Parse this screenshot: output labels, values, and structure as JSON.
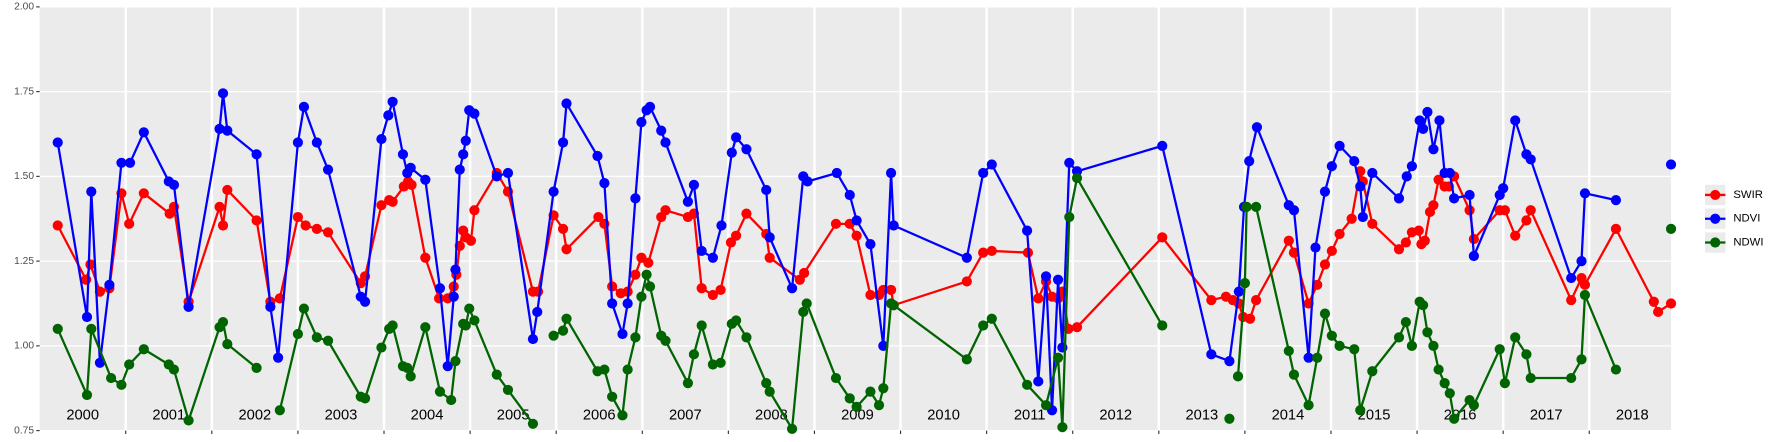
{
  "chart_data": {
    "type": "line",
    "xlim": [
      2000,
      2018.95
    ],
    "xticks": [
      2001,
      2002,
      2003,
      2004,
      2005,
      2006,
      2007,
      2008,
      2009,
      2010,
      2011,
      2012,
      2013,
      2014,
      2015,
      2016,
      2017,
      2018
    ],
    "year_labels": [
      {
        "value": 2000.5,
        "label": "2000"
      },
      {
        "value": 2001.5,
        "label": "2001"
      },
      {
        "value": 2002.5,
        "label": "2002"
      },
      {
        "value": 2003.5,
        "label": "2003"
      },
      {
        "value": 2004.5,
        "label": "2004"
      },
      {
        "value": 2005.5,
        "label": "2005"
      },
      {
        "value": 2006.5,
        "label": "2006"
      },
      {
        "value": 2007.5,
        "label": "2007"
      },
      {
        "value": 2008.5,
        "label": "2008"
      },
      {
        "value": 2009.5,
        "label": "2009"
      },
      {
        "value": 2010.5,
        "label": "2010"
      },
      {
        "value": 2011.5,
        "label": "2011"
      },
      {
        "value": 2012.5,
        "label": "2012"
      },
      {
        "value": 2013.5,
        "label": "2013"
      },
      {
        "value": 2014.5,
        "label": "2014"
      },
      {
        "value": 2015.5,
        "label": "2015"
      },
      {
        "value": 2016.5,
        "label": "2016"
      },
      {
        "value": 2017.5,
        "label": "2017"
      },
      {
        "value": 2018.5,
        "label": "2018"
      }
    ],
    "ylim": [
      0.75,
      2.0
    ],
    "yticks": [
      {
        "value": 0.75,
        "label": "0.75"
      },
      {
        "value": 1,
        "label": "1.00"
      },
      {
        "value": 1.25,
        "label": "1.25"
      },
      {
        "value": 1.5,
        "label": "1.50"
      },
      {
        "value": 1.75,
        "label": "1.75"
      },
      {
        "value": 2,
        "label": "2.00"
      }
    ],
    "grid": true,
    "legend": "right",
    "series": [
      {
        "name": "SWIR",
        "color": "#ff0000",
        "x": [
          2000.21,
          2000.54,
          2000.59,
          2000.7,
          2000.81,
          2000.95,
          2001.04,
          2001.21,
          2001.51,
          2001.56,
          2001.73,
          2002.09,
          2002.13,
          2002.18,
          2002.52,
          2002.68,
          2002.79,
          2003.0,
          2003.09,
          2003.22,
          2003.35,
          2003.73,
          2003.78,
          2003.97,
          2004.06,
          2004.1,
          2004.23,
          2004.28,
          2004.32,
          2004.48,
          2004.64,
          2004.74,
          2004.81,
          2004.84,
          2004.88,
          2004.92,
          2004.95,
          2005.01,
          2005.05,
          2005.31,
          2005.44,
          2005.73,
          2005.79,
          2005.97,
          2006.08,
          2006.12,
          2006.49,
          2006.56,
          2006.65,
          2006.75,
          2006.83,
          2006.92,
          2006.99,
          2007.07,
          2007.22,
          2007.27,
          2007.53,
          2007.6,
          2007.69,
          2007.82,
          2007.91,
          2008.03,
          2008.09,
          2008.21,
          2008.44,
          2008.48,
          2008.83,
          2008.88,
          2009.25,
          2009.41,
          2009.49,
          2009.65,
          2009.75,
          2009.8,
          2009.89,
          2009.92,
          2010.77,
          2010.96,
          2011.06,
          2011.48,
          2011.6,
          2011.69,
          2011.76,
          2011.83,
          2011.88,
          2011.95,
          2012.05,
          2013.04,
          2013.61,
          2013.78,
          2013.86,
          2013.93,
          2013.98,
          2014.06,
          2014.13,
          2014.51,
          2014.57,
          2014.74,
          2014.84,
          2014.93,
          2015.01,
          2015.1,
          2015.24,
          2015.34,
          2015.37,
          2015.48,
          2015.79,
          2015.87,
          2015.94,
          2016.02,
          2016.05,
          2016.09,
          2016.15,
          2016.19,
          2016.25,
          2016.32,
          2016.37,
          2016.43,
          2016.61,
          2016.66,
          2016.96,
          2017.02,
          2017.14,
          2017.27,
          2017.32,
          2017.79,
          2017.91,
          2017.95,
          2018.31,
          2018.75,
          2018.8,
          2018.95
        ],
        "values": [
          1.355,
          1.195,
          1.24,
          1.16,
          1.17,
          1.45,
          1.36,
          1.45,
          1.39,
          1.41,
          1.13,
          1.41,
          1.355,
          1.46,
          1.37,
          1.13,
          1.14,
          1.38,
          1.355,
          1.345,
          1.335,
          1.185,
          1.205,
          1.415,
          1.43,
          1.425,
          1.47,
          1.485,
          1.475,
          1.26,
          1.14,
          1.14,
          1.175,
          1.21,
          1.295,
          1.34,
          1.32,
          1.31,
          1.4,
          1.51,
          1.455,
          1.16,
          1.16,
          1.385,
          1.345,
          1.285,
          1.38,
          1.36,
          1.175,
          1.155,
          1.16,
          1.21,
          1.26,
          1.245,
          1.38,
          1.4,
          1.38,
          1.39,
          1.17,
          1.15,
          1.165,
          1.305,
          1.325,
          1.39,
          1.33,
          1.26,
          1.195,
          1.215,
          1.36,
          1.36,
          1.325,
          1.15,
          1.15,
          1.165,
          1.165,
          1.12,
          1.19,
          1.275,
          1.28,
          1.275,
          1.14,
          1.19,
          1.145,
          1.14,
          1.16,
          1.05,
          1.055,
          1.32,
          1.135,
          1.145,
          1.135,
          1.125,
          1.085,
          1.08,
          1.135,
          1.31,
          1.275,
          1.125,
          1.18,
          1.24,
          1.28,
          1.33,
          1.375,
          1.515,
          1.485,
          1.36,
          1.285,
          1.305,
          1.335,
          1.34,
          1.3,
          1.31,
          1.395,
          1.415,
          1.49,
          1.47,
          1.47,
          1.5,
          1.4,
          1.315,
          1.4,
          1.4,
          1.325,
          1.37,
          1.4,
          1.135,
          1.2,
          1.18,
          1.345,
          1.13,
          1.1,
          1.125
        ]
      },
      {
        "name": "NDVI",
        "color": "#0000ff",
        "x": [
          2000.21,
          2000.55,
          2000.6,
          2000.7,
          2000.81,
          2000.95,
          2001.05,
          2001.21,
          2001.5,
          2001.56,
          2001.73,
          2002.09,
          2002.13,
          2002.18,
          2002.52,
          2002.68,
          2002.77,
          2003.0,
          2003.07,
          2003.22,
          2003.35,
          2003.73,
          2003.78,
          2003.97,
          2004.05,
          2004.1,
          2004.22,
          2004.27,
          2004.31,
          2004.48,
          2004.65,
          2004.74,
          2004.81,
          2004.83,
          2004.88,
          2004.92,
          2004.95,
          2004.99,
          2005.05,
          2005.31,
          2005.44,
          2005.73,
          2005.78,
          2005.97,
          2006.08,
          2006.12,
          2006.48,
          2006.56,
          2006.65,
          2006.77,
          2006.83,
          2006.92,
          2006.99,
          2007.05,
          2007.09,
          2007.22,
          2007.27,
          2007.53,
          2007.6,
          2007.69,
          2007.82,
          2007.92,
          2008.04,
          2008.09,
          2008.21,
          2008.44,
          2008.48,
          2008.74,
          2008.87,
          2008.92,
          2009.26,
          2009.41,
          2009.49,
          2009.65,
          2009.8,
          2009.89,
          2009.92,
          2010.77,
          2010.96,
          2011.06,
          2011.47,
          2011.6,
          2011.69,
          2011.76,
          2011.83,
          2011.88,
          2011.96,
          2012.05,
          2013.04,
          2013.61,
          2013.82,
          2013.93,
          2013.99,
          2014.05,
          2014.14,
          2014.51,
          2014.57,
          2014.74,
          2014.82,
          2014.93,
          2015.01,
          2015.1,
          2015.27,
          2015.34,
          2015.37,
          2015.48,
          2015.79,
          2015.88,
          2015.94,
          2016.03,
          2016.07,
          2016.12,
          2016.19,
          2016.26,
          2016.32,
          2016.38,
          2016.43,
          2016.61,
          2016.66,
          2016.96,
          2017.0,
          2017.14,
          2017.27,
          2017.32,
          2017.79,
          2017.91,
          2017.95,
          2018.31,
          null,
          2018.95
        ],
        "values": [
          1.6,
          1.085,
          1.455,
          0.95,
          1.18,
          1.54,
          1.54,
          1.63,
          1.485,
          1.475,
          1.115,
          1.64,
          1.745,
          1.635,
          1.565,
          1.115,
          0.965,
          1.6,
          1.705,
          1.6,
          1.52,
          1.145,
          1.13,
          1.61,
          1.68,
          1.72,
          1.565,
          1.51,
          1.525,
          1.49,
          1.17,
          0.94,
          1.145,
          1.225,
          1.52,
          1.565,
          1.605,
          1.695,
          1.685,
          1.5,
          1.51,
          1.02,
          1.1,
          1.455,
          1.6,
          1.715,
          1.56,
          1.48,
          1.125,
          1.035,
          1.125,
          1.435,
          1.66,
          1.695,
          1.705,
          1.635,
          1.6,
          1.425,
          1.475,
          1.28,
          1.26,
          1.355,
          1.57,
          1.615,
          1.58,
          1.46,
          1.32,
          1.17,
          1.5,
          1.485,
          1.51,
          1.445,
          1.37,
          1.3,
          1.0,
          1.51,
          1.355,
          1.26,
          1.51,
          1.535,
          1.34,
          0.895,
          1.205,
          0.81,
          1.195,
          0.995,
          1.54,
          1.515,
          1.59,
          0.975,
          0.955,
          1.16,
          1.41,
          1.545,
          1.645,
          1.415,
          1.4,
          0.965,
          1.29,
          1.455,
          1.53,
          1.59,
          1.545,
          1.47,
          1.38,
          1.51,
          1.435,
          1.5,
          1.53,
          1.665,
          1.64,
          1.69,
          1.58,
          1.665,
          1.51,
          1.51,
          1.435,
          1.445,
          1.265,
          1.445,
          1.465,
          1.665,
          1.565,
          1.55,
          1.2,
          1.25,
          1.45,
          1.43,
          null,
          1.535
        ]
      },
      {
        "name": "NDWI",
        "color": "#006400",
        "x": [
          2000.21,
          2000.55,
          2000.6,
          2000.83,
          2000.95,
          2001.04,
          2001.21,
          2001.5,
          2001.56,
          2001.73,
          2002.09,
          2002.13,
          2002.18,
          2002.52,
          null,
          2002.79,
          2003.0,
          2003.07,
          2003.22,
          2003.35,
          2003.73,
          2003.78,
          2003.97,
          2004.06,
          2004.1,
          2004.22,
          2004.27,
          2004.31,
          2004.48,
          2004.65,
          2004.78,
          2004.83,
          2004.92,
          2004.95,
          2004.99,
          2005.05,
          2005.31,
          2005.44,
          2005.73,
          null,
          2005.97,
          2006.08,
          2006.12,
          2006.48,
          2006.56,
          2006.65,
          2006.77,
          2006.83,
          2006.92,
          2006.99,
          2007.05,
          2007.09,
          2007.22,
          2007.27,
          2007.53,
          2007.6,
          2007.69,
          2007.82,
          2007.91,
          2008.04,
          2008.09,
          2008.21,
          2008.44,
          2008.48,
          2008.74,
          2008.87,
          2008.91,
          2009.25,
          2009.41,
          2009.49,
          2009.65,
          2009.75,
          2009.8,
          2009.89,
          2009.92,
          2010.77,
          2010.96,
          2011.06,
          2011.47,
          2011.69,
          2011.83,
          2011.88,
          2011.96,
          2012.05,
          2013.04,
          null,
          2013.82,
          null,
          2013.92,
          2014.0,
          2014.02,
          2014.13,
          2014.51,
          2014.57,
          2014.74,
          2014.84,
          2014.93,
          2015.01,
          2015.1,
          2015.27,
          2015.34,
          2015.48,
          2015.79,
          2015.87,
          2015.94,
          2016.03,
          2016.07,
          2016.12,
          2016.19,
          2016.25,
          2016.32,
          2016.38,
          2016.43,
          2016.61,
          2016.66,
          2016.96,
          2017.02,
          2017.14,
          2017.27,
          2017.32,
          2017.79,
          2017.91,
          2017.95,
          2018.31,
          null,
          2018.95
        ],
        "values": [
          1.05,
          0.855,
          1.05,
          0.905,
          0.885,
          0.945,
          0.99,
          0.945,
          0.93,
          0.78,
          1.055,
          1.07,
          1.005,
          0.935,
          null,
          0.81,
          1.035,
          1.11,
          1.025,
          1.015,
          0.85,
          0.845,
          0.995,
          1.05,
          1.06,
          0.94,
          0.935,
          0.91,
          1.055,
          0.865,
          0.84,
          0.955,
          1.065,
          1.06,
          1.11,
          1.075,
          0.915,
          0.87,
          0.77,
          null,
          1.03,
          1.045,
          1.08,
          0.925,
          0.93,
          0.85,
          0.795,
          0.93,
          1.025,
          1.145,
          1.21,
          1.175,
          1.03,
          1.015,
          0.89,
          0.975,
          1.06,
          0.945,
          0.95,
          1.065,
          1.075,
          1.025,
          0.89,
          0.865,
          0.755,
          1.1,
          1.125,
          0.905,
          0.845,
          0.82,
          0.865,
          0.825,
          0.875,
          1.125,
          1.12,
          0.96,
          1.06,
          1.08,
          0.885,
          0.825,
          0.965,
          0.76,
          1.38,
          1.495,
          1.06,
          null,
          0.785,
          null,
          0.91,
          1.185,
          1.41,
          1.41,
          0.985,
          0.915,
          0.825,
          0.965,
          1.095,
          1.03,
          1.0,
          0.99,
          0.81,
          0.925,
          1.025,
          1.07,
          1.0,
          1.13,
          1.12,
          1.04,
          1.0,
          0.93,
          0.89,
          0.86,
          0.785,
          0.84,
          0.825,
          0.99,
          0.89,
          1.025,
          0.975,
          0.905,
          0.905,
          0.96,
          1.15,
          0.93,
          null,
          1.345
        ]
      }
    ]
  }
}
